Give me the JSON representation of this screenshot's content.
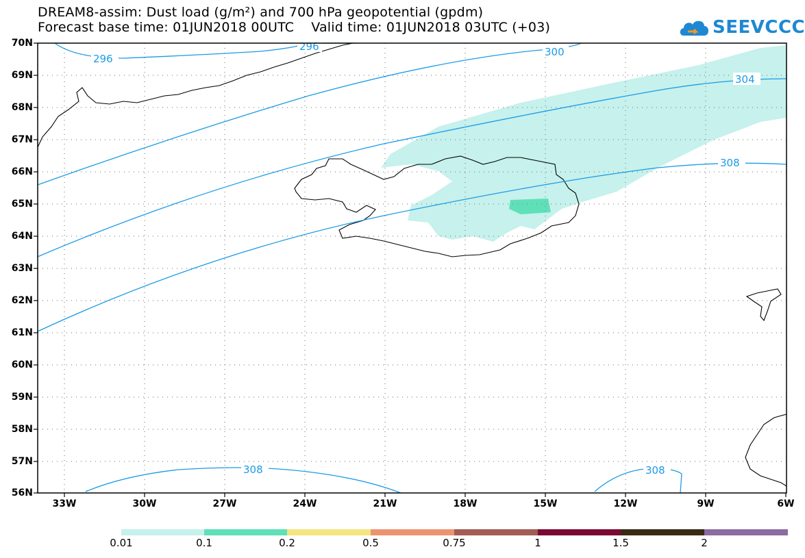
{
  "title_line1": "DREAM8-assim: Dust load (g/m²) and 700 hPa geopotential (gpdm)",
  "title_line2": "Forecast base time: 01JUN2018 00UTC    Valid time: 01JUN2018 03UTC (+03)",
  "logo_text": "SEEVCCC",
  "lat_labels": [
    "70N",
    "69N",
    "68N",
    "67N",
    "66N",
    "65N",
    "64N",
    "63N",
    "62N",
    "61N",
    "60N",
    "59N",
    "58N",
    "57N",
    "56N"
  ],
  "lon_labels": [
    "33W",
    "30W",
    "27W",
    "24W",
    "21W",
    "18W",
    "15W",
    "12W",
    "9W",
    "6W"
  ],
  "contour_labels": [
    "296",
    "296",
    "300",
    "304",
    "308",
    "308",
    "308"
  ],
  "colorbar": {
    "colors": [
      "#c6f1ec",
      "#5fe0b8",
      "#f5e57f",
      "#ec9470",
      "#a35c54",
      "#7a0a32",
      "#3a2a14",
      "#8c6ba0"
    ],
    "labels": [
      "0.01",
      "0.1",
      "0.2",
      "0.5",
      "0.75",
      "1",
      "1.5",
      "2"
    ]
  }
}
